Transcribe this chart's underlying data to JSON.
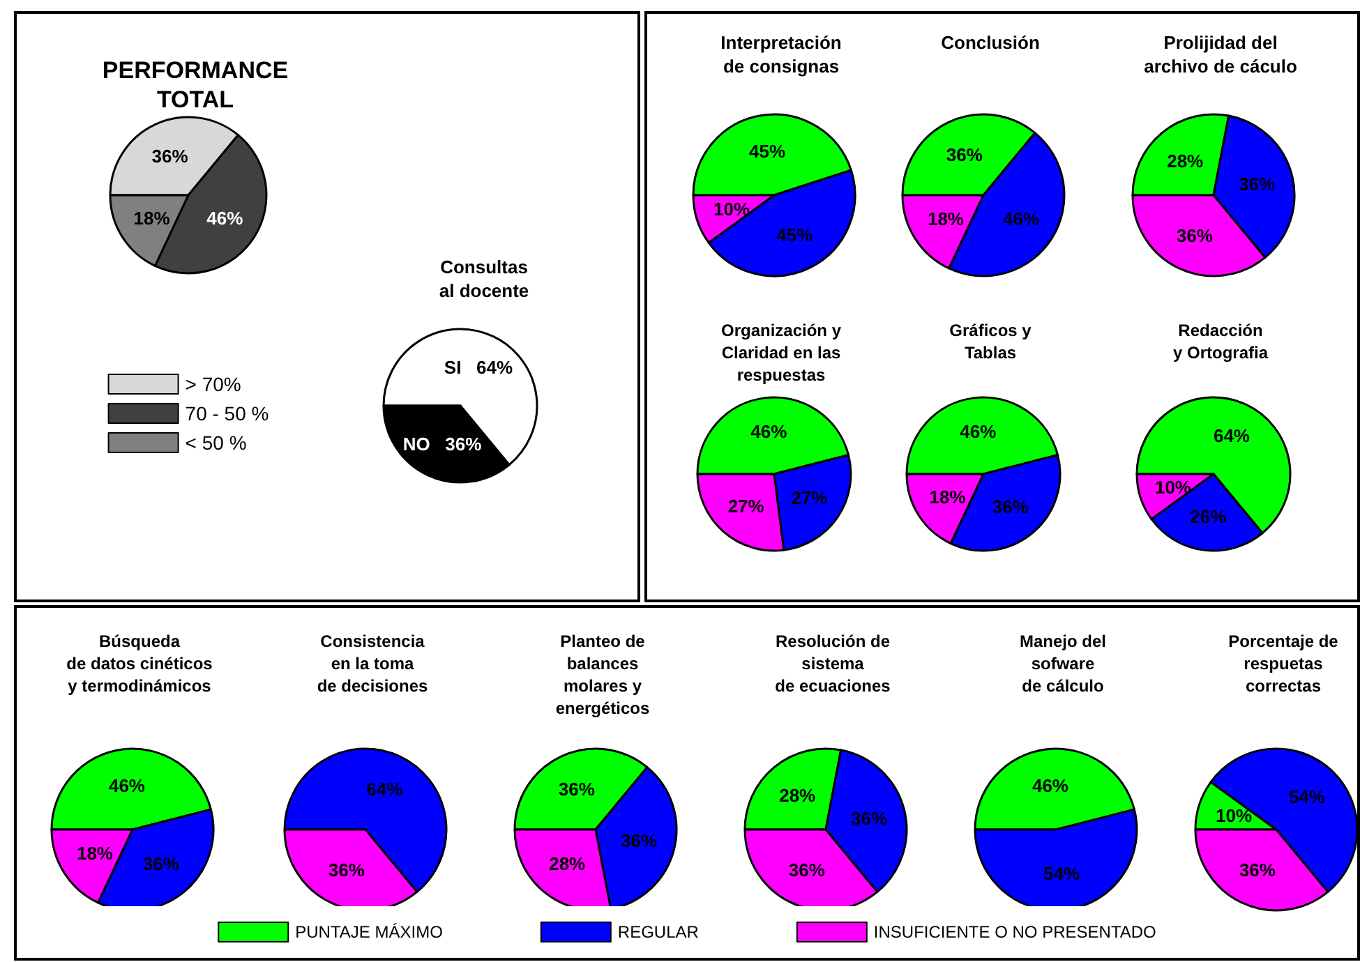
{
  "chart_data": [
    {
      "type": "pie",
      "title": "PERFORMANCE\nTOTAL",
      "categories": [
        "> 70%",
        "70 - 50 %",
        "< 50 %"
      ],
      "values": [
        36,
        46,
        18
      ],
      "colors": [
        "#d8d8d8",
        "#404040",
        "#808080"
      ],
      "value_labels": [
        "36%",
        "46%",
        "18%"
      ],
      "legend": "bottom"
    },
    {
      "type": "pie",
      "title": "Consultas\nal docente",
      "categories": [
        "SI",
        "NO"
      ],
      "values": [
        64,
        36
      ],
      "colors": [
        "#ffffff",
        "#000000"
      ],
      "value_labels": [
        "64%",
        "36%"
      ],
      "legend": false
    },
    {
      "type": "pie",
      "title": "Interpretación\nde consignas",
      "values": [
        45,
        45,
        10
      ],
      "colors": [
        "#00ff00",
        "#0000ff",
        "#ff00ff"
      ],
      "value_labels": [
        "45%",
        "45%",
        "10%"
      ]
    },
    {
      "type": "pie",
      "title": "Conclusión",
      "values": [
        36,
        46,
        18
      ],
      "colors": [
        "#00ff00",
        "#0000ff",
        "#ff00ff"
      ],
      "value_labels": [
        "36%",
        "46%",
        "18%"
      ]
    },
    {
      "type": "pie",
      "title": "Prolijidad del\narchivo de cáculo",
      "values": [
        28,
        36,
        36
      ],
      "colors": [
        "#00ff00",
        "#0000ff",
        "#ff00ff"
      ],
      "value_labels": [
        "28%",
        "36%",
        "36%"
      ]
    },
    {
      "type": "pie",
      "title": "Organización y\nClaridad en las\nrespuestas",
      "values": [
        46,
        27,
        27
      ],
      "colors": [
        "#00ff00",
        "#0000ff",
        "#ff00ff"
      ],
      "value_labels": [
        "46%",
        "27%",
        "27%"
      ]
    },
    {
      "type": "pie",
      "title": "Gráficos y\nTablas",
      "values": [
        46,
        36,
        18
      ],
      "colors": [
        "#00ff00",
        "#0000ff",
        "#ff00ff"
      ],
      "value_labels": [
        "46%",
        "36%",
        "18%"
      ]
    },
    {
      "type": "pie",
      "title": "Redacción\ny Ortografia",
      "values": [
        64,
        26,
        10
      ],
      "colors": [
        "#00ff00",
        "#0000ff",
        "#ff00ff"
      ],
      "value_labels": [
        "64%",
        "26%",
        "10%"
      ]
    },
    {
      "type": "pie",
      "title": "Búsqueda\nde datos cinéticos\ny termodinámicos",
      "values": [
        46,
        36,
        18
      ],
      "colors": [
        "#00ff00",
        "#0000ff",
        "#ff00ff"
      ],
      "value_labels": [
        "46%",
        "36%",
        "18%"
      ]
    },
    {
      "type": "pie",
      "title": "Consistencia\nen la toma\nde decisiones",
      "values": [
        64,
        36
      ],
      "colors": [
        "#0000ff",
        "#ff00ff"
      ],
      "value_labels": [
        "64%",
        "36%"
      ]
    },
    {
      "type": "pie",
      "title": "Planteo de\nbalances\nmolares y\nenergéticos",
      "values": [
        36,
        36,
        28
      ],
      "colors": [
        "#00ff00",
        "#0000ff",
        "#ff00ff"
      ],
      "value_labels": [
        "36%",
        "36%",
        "28%"
      ]
    },
    {
      "type": "pie",
      "title": "Resolución de\nsistema\nde ecuaciones",
      "values": [
        28,
        36,
        36
      ],
      "colors": [
        "#00ff00",
        "#0000ff",
        "#ff00ff"
      ],
      "value_labels": [
        "28%",
        "36%",
        "36%"
      ]
    },
    {
      "type": "pie",
      "title": "Manejo del\nsofware\nde cálculo",
      "values": [
        46,
        54
      ],
      "colors": [
        "#00ff00",
        "#0000ff"
      ],
      "value_labels": [
        "46%",
        "54%"
      ]
    },
    {
      "type": "pie",
      "title": "Porcentaje de\nrespuetas\ncorrectas",
      "categories": [
        "PUNTAJE MÁXIMO",
        "REGULAR",
        "INSUFICIENTE O NO PRESENTADO"
      ],
      "values": [
        10,
        54,
        36
      ],
      "colors": [
        "#00ff00",
        "#0000ff",
        "#ff00ff"
      ],
      "value_labels": [
        "10%",
        "54%",
        "36%"
      ],
      "legend": "bottom"
    }
  ]
}
